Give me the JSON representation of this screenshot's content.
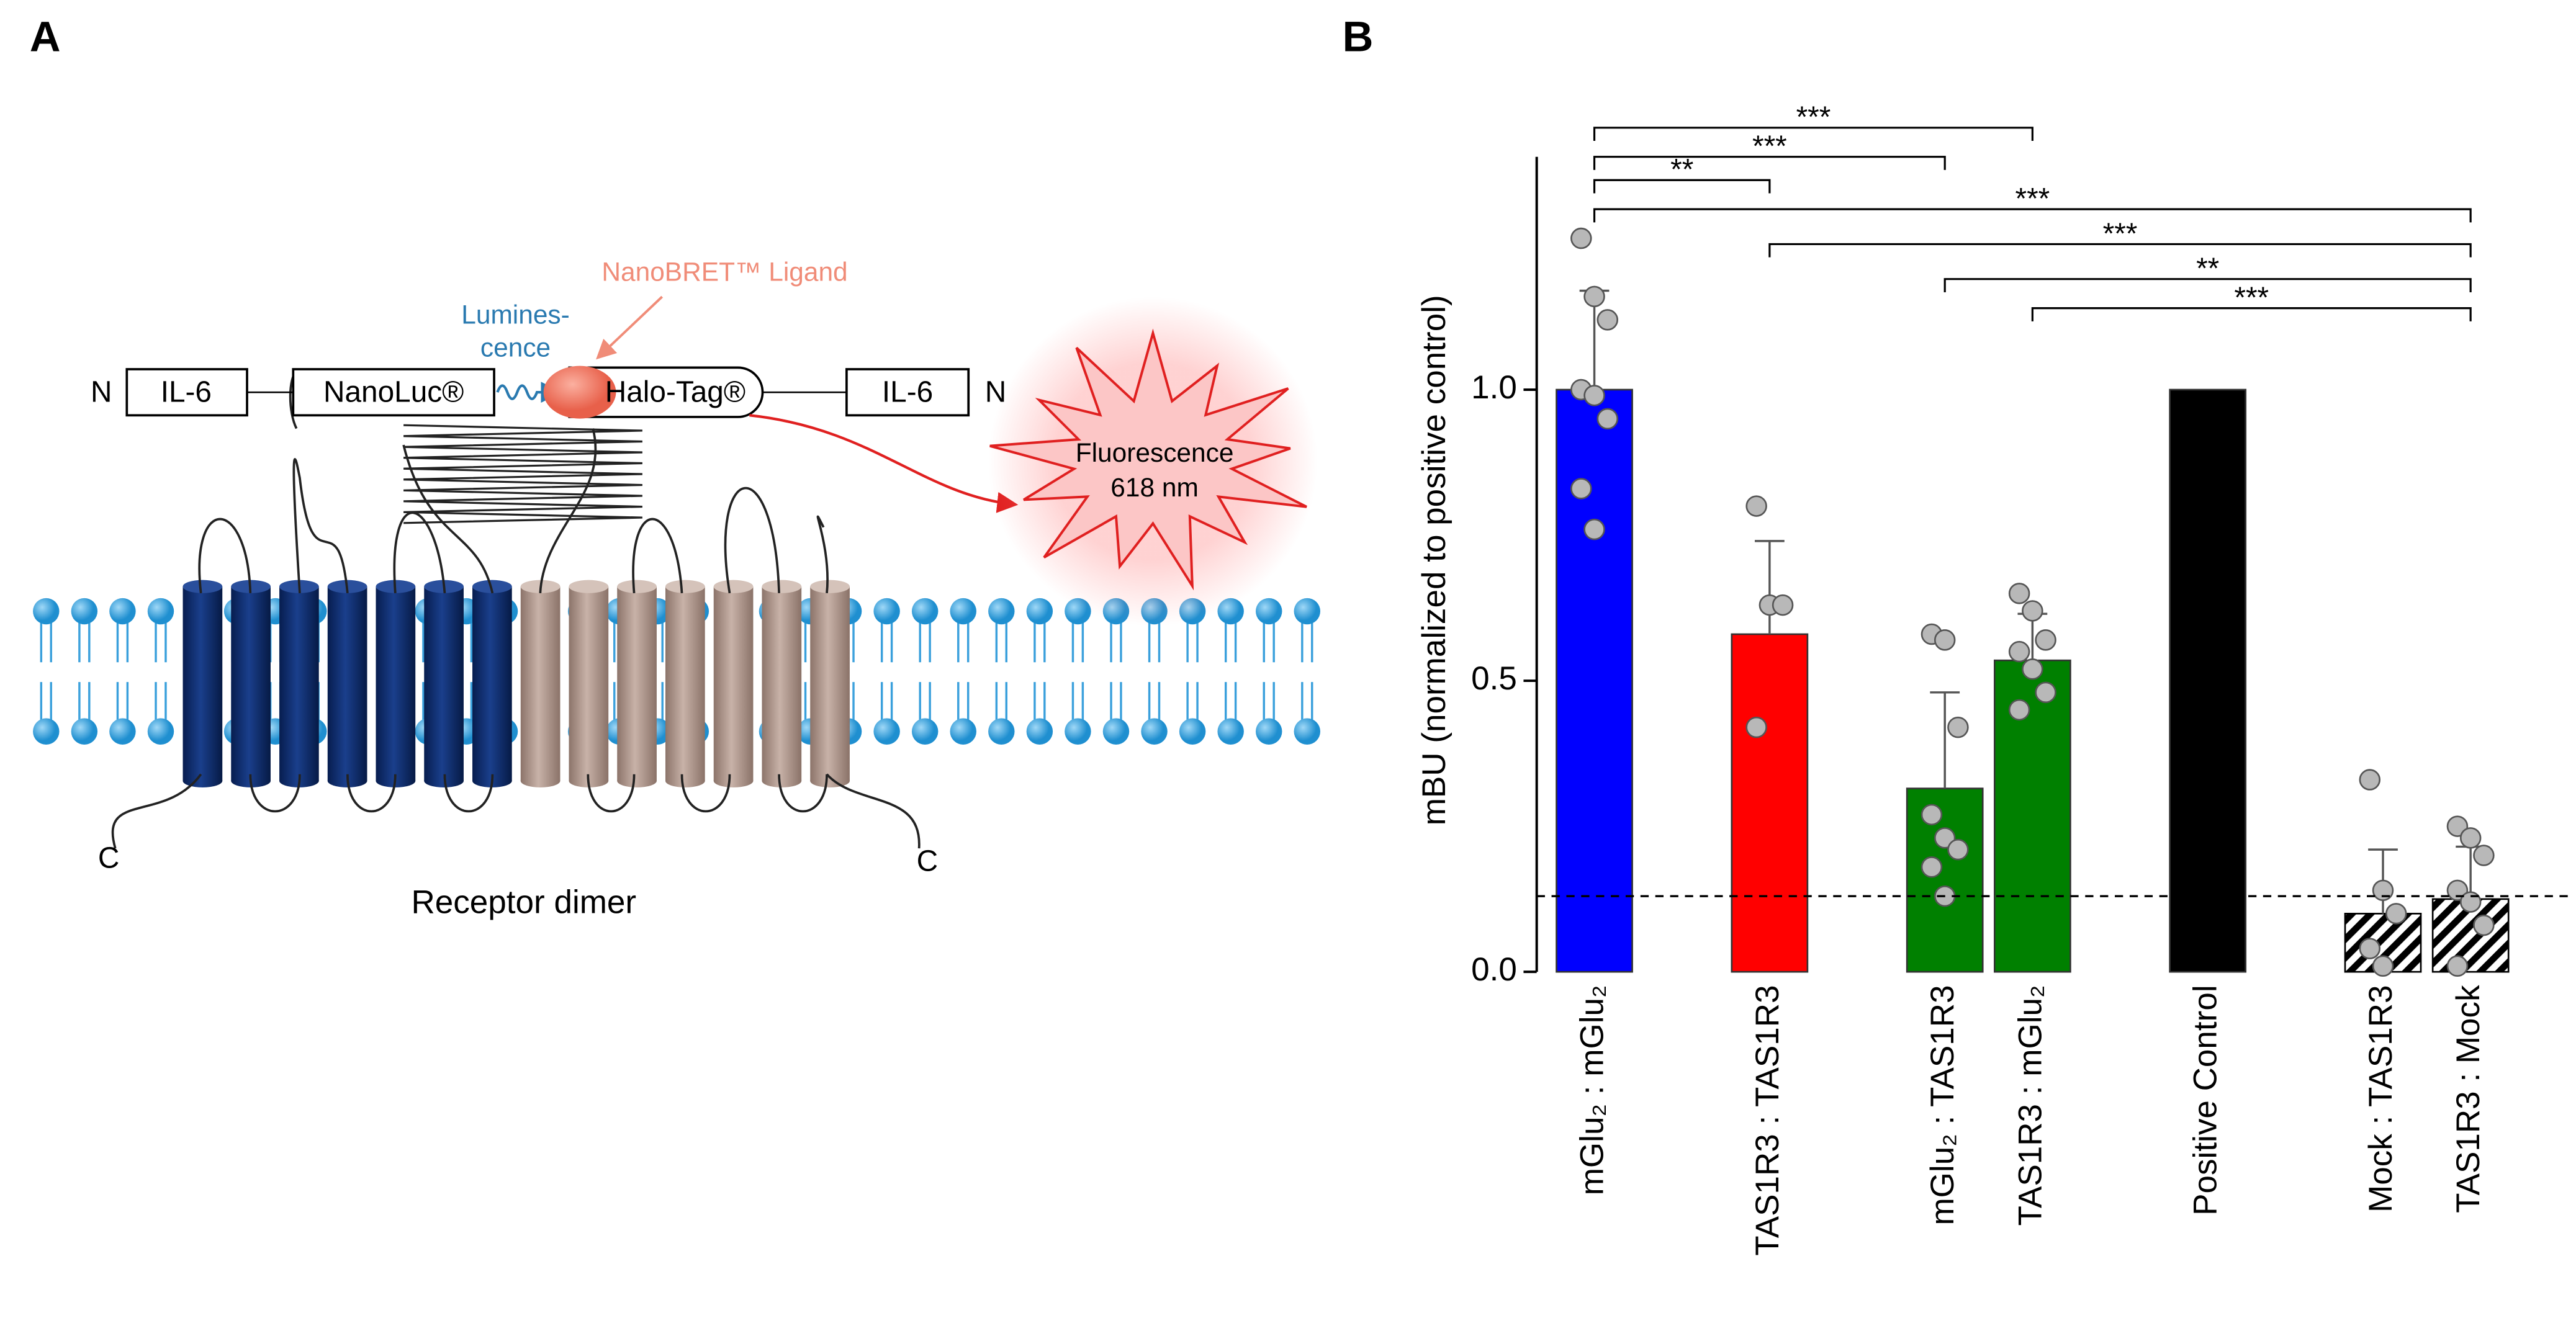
{
  "panel_labels": [
    "A",
    "B"
  ],
  "diagram": {
    "left_n": "N",
    "left_il6": "IL-6",
    "nanoluc": "NanoLuc®",
    "halotag": "Halo-Tag®",
    "right_il6": "IL-6",
    "right_n": "N",
    "ligand": "NanoBRET™ Ligand",
    "luminescence": [
      "Lumines-",
      "cence"
    ],
    "fluorescence": [
      "Fluorescence",
      "618 nm"
    ],
    "c_terminals": [
      "C",
      "C"
    ],
    "caption": "Receptor dimer"
  },
  "chart_data": {
    "type": "bar",
    "y_label": "mBU (normalized to positive control)",
    "categories": [
      "mGlu₂ : mGlu₂",
      null,
      "TAS1R3 : TAS1R3",
      null,
      "mGlu₂ : TAS1R3",
      "TAS1R3 : mGlu₂",
      null,
      "Positive Control",
      null,
      "Mock : TAS1R3",
      "TAS1R3 : Mock"
    ],
    "values": [
      1.0,
      null,
      0.58,
      null,
      0.315,
      0.535,
      null,
      1.0,
      null,
      0.1,
      0.125
    ],
    "errors": [
      0.17,
      null,
      0.16,
      null,
      0.165,
      0.08,
      null,
      null,
      null,
      0.11,
      0.09
    ],
    "colors": [
      "#0000ff",
      null,
      "#ff0000",
      null,
      "#008000",
      "#008000",
      null,
      "#000000",
      null,
      "#000000",
      "#000000"
    ],
    "hatch": [
      false,
      null,
      false,
      null,
      false,
      false,
      null,
      false,
      null,
      true,
      true
    ],
    "points": [
      [
        1.26,
        1.16,
        1.12,
        1.0,
        0.99,
        0.95,
        0.83,
        0.76
      ],
      null,
      [
        0.8,
        0.63,
        0.63,
        0.42
      ],
      null,
      [
        0.58,
        0.57,
        0.42,
        0.27,
        0.23,
        0.21,
        0.18,
        0.13
      ],
      [
        0.65,
        0.62,
        0.57,
        0.55,
        0.52,
        0.48,
        0.45
      ],
      null,
      [],
      null,
      [
        0.33,
        0.14,
        0.1,
        0.04,
        0.01
      ],
      [
        0.25,
        0.23,
        0.2,
        0.14,
        0.12,
        0.08,
        0.01
      ]
    ],
    "threshold": 0.13,
    "ylim": [
      0,
      1.4
    ],
    "yticks": [
      {
        "value": 0,
        "label": "0.0"
      },
      {
        "value": 0.5,
        "label": "0.5"
      },
      {
        "value": 1,
        "label": "1.0"
      }
    ],
    "significance": [
      {
        "from": 0,
        "to": 5,
        "label": "***",
        "y": 1.45
      },
      {
        "from": 0,
        "to": 4,
        "label": "***",
        "y": 1.4
      },
      {
        "from": 0,
        "to": 2,
        "label": "**",
        "y": 1.36
      },
      {
        "from": 0,
        "to": 10,
        "label": "***",
        "y": 1.31
      },
      {
        "from": 2,
        "to": 10,
        "label": "***",
        "y": 1.25
      },
      {
        "from": 4,
        "to": 10,
        "label": "**",
        "y": 1.19
      },
      {
        "from": 5,
        "to": 10,
        "label": "***",
        "y": 1.14
      }
    ]
  }
}
